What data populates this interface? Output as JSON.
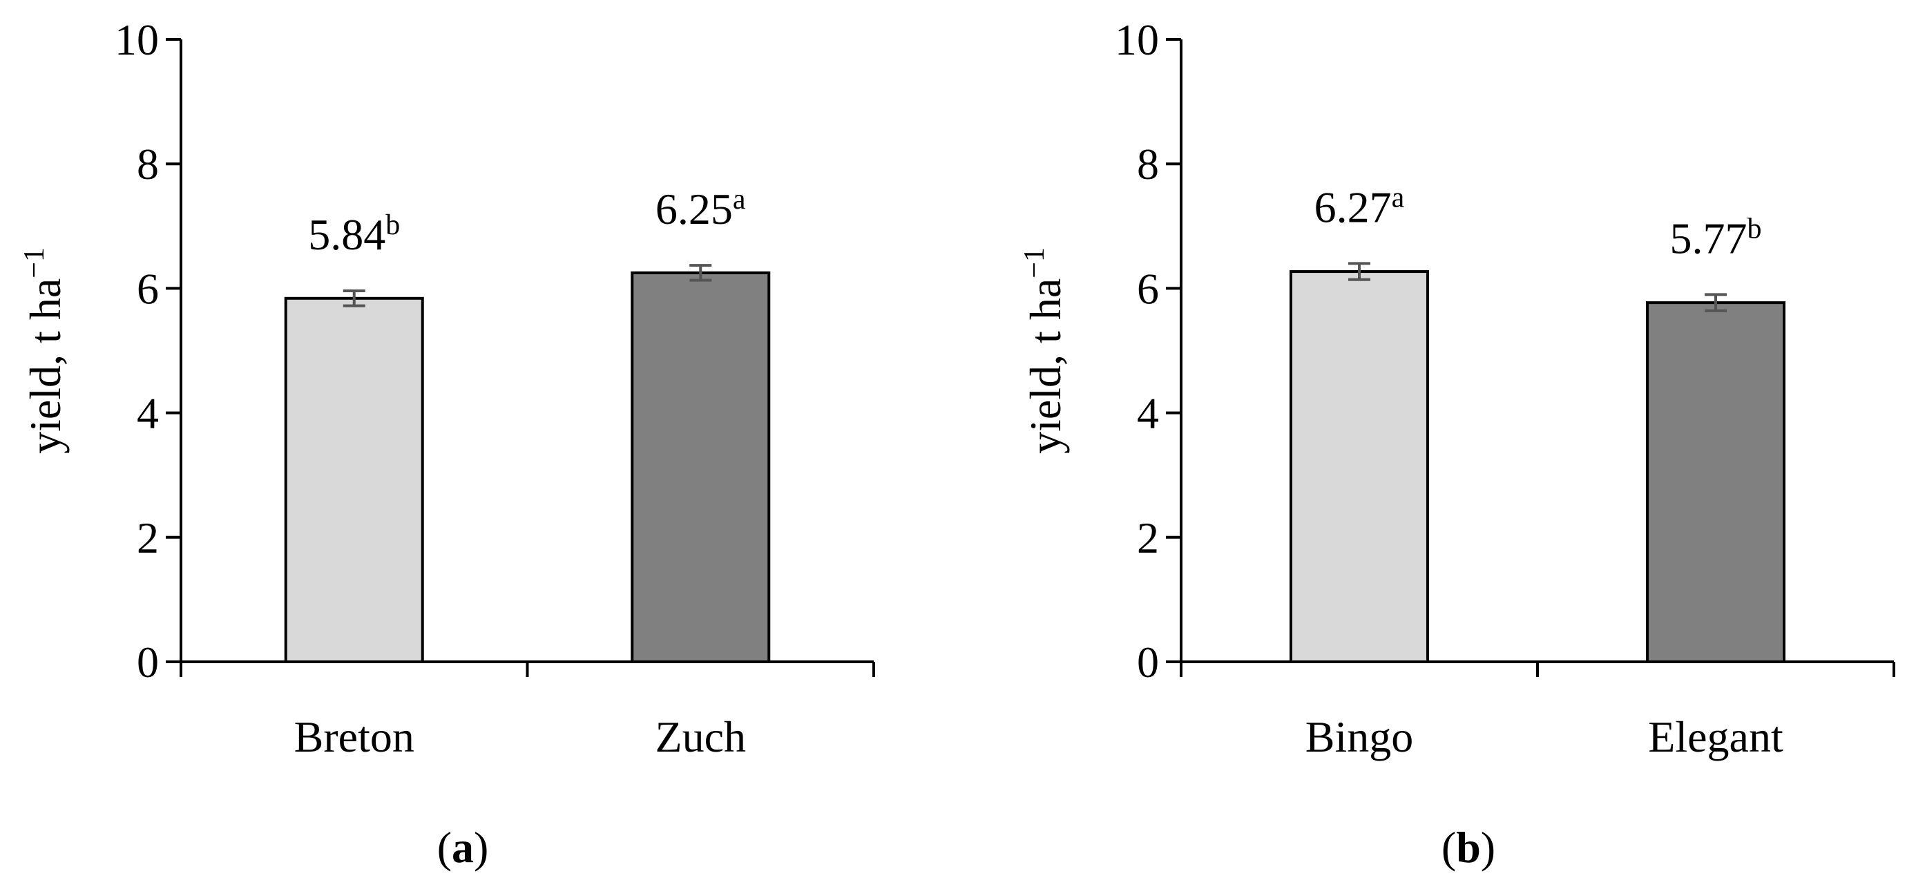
{
  "chart_data": [
    {
      "type": "bar",
      "panel_label": "a",
      "ylabel": "yield, t ha",
      "ylabel_superscript": "−1",
      "ylim": [
        0,
        10
      ],
      "yticks": [
        0,
        2,
        4,
        6,
        8,
        10
      ],
      "categories": [
        "Breton",
        "Zuch"
      ],
      "values": [
        5.84,
        6.25
      ],
      "errors": [
        0.12,
        0.12
      ],
      "data_labels": [
        "5.84",
        "6.25"
      ],
      "significance": [
        "b",
        "a"
      ],
      "colors": [
        "#d9d9d9",
        "#808080"
      ],
      "grid": false,
      "legend": "none"
    },
    {
      "type": "bar",
      "panel_label": "b",
      "ylabel": "yield, t ha",
      "ylabel_superscript": "−1",
      "ylim": [
        0,
        10
      ],
      "yticks": [
        0,
        2,
        4,
        6,
        8,
        10
      ],
      "categories": [
        "Bingo",
        "Elegant"
      ],
      "values": [
        6.27,
        5.77
      ],
      "errors": [
        0.13,
        0.13
      ],
      "data_labels": [
        "6.27",
        "5.77"
      ],
      "significance": [
        "a",
        "b"
      ],
      "colors": [
        "#d9d9d9",
        "#808080"
      ],
      "grid": false,
      "legend": "none"
    }
  ]
}
